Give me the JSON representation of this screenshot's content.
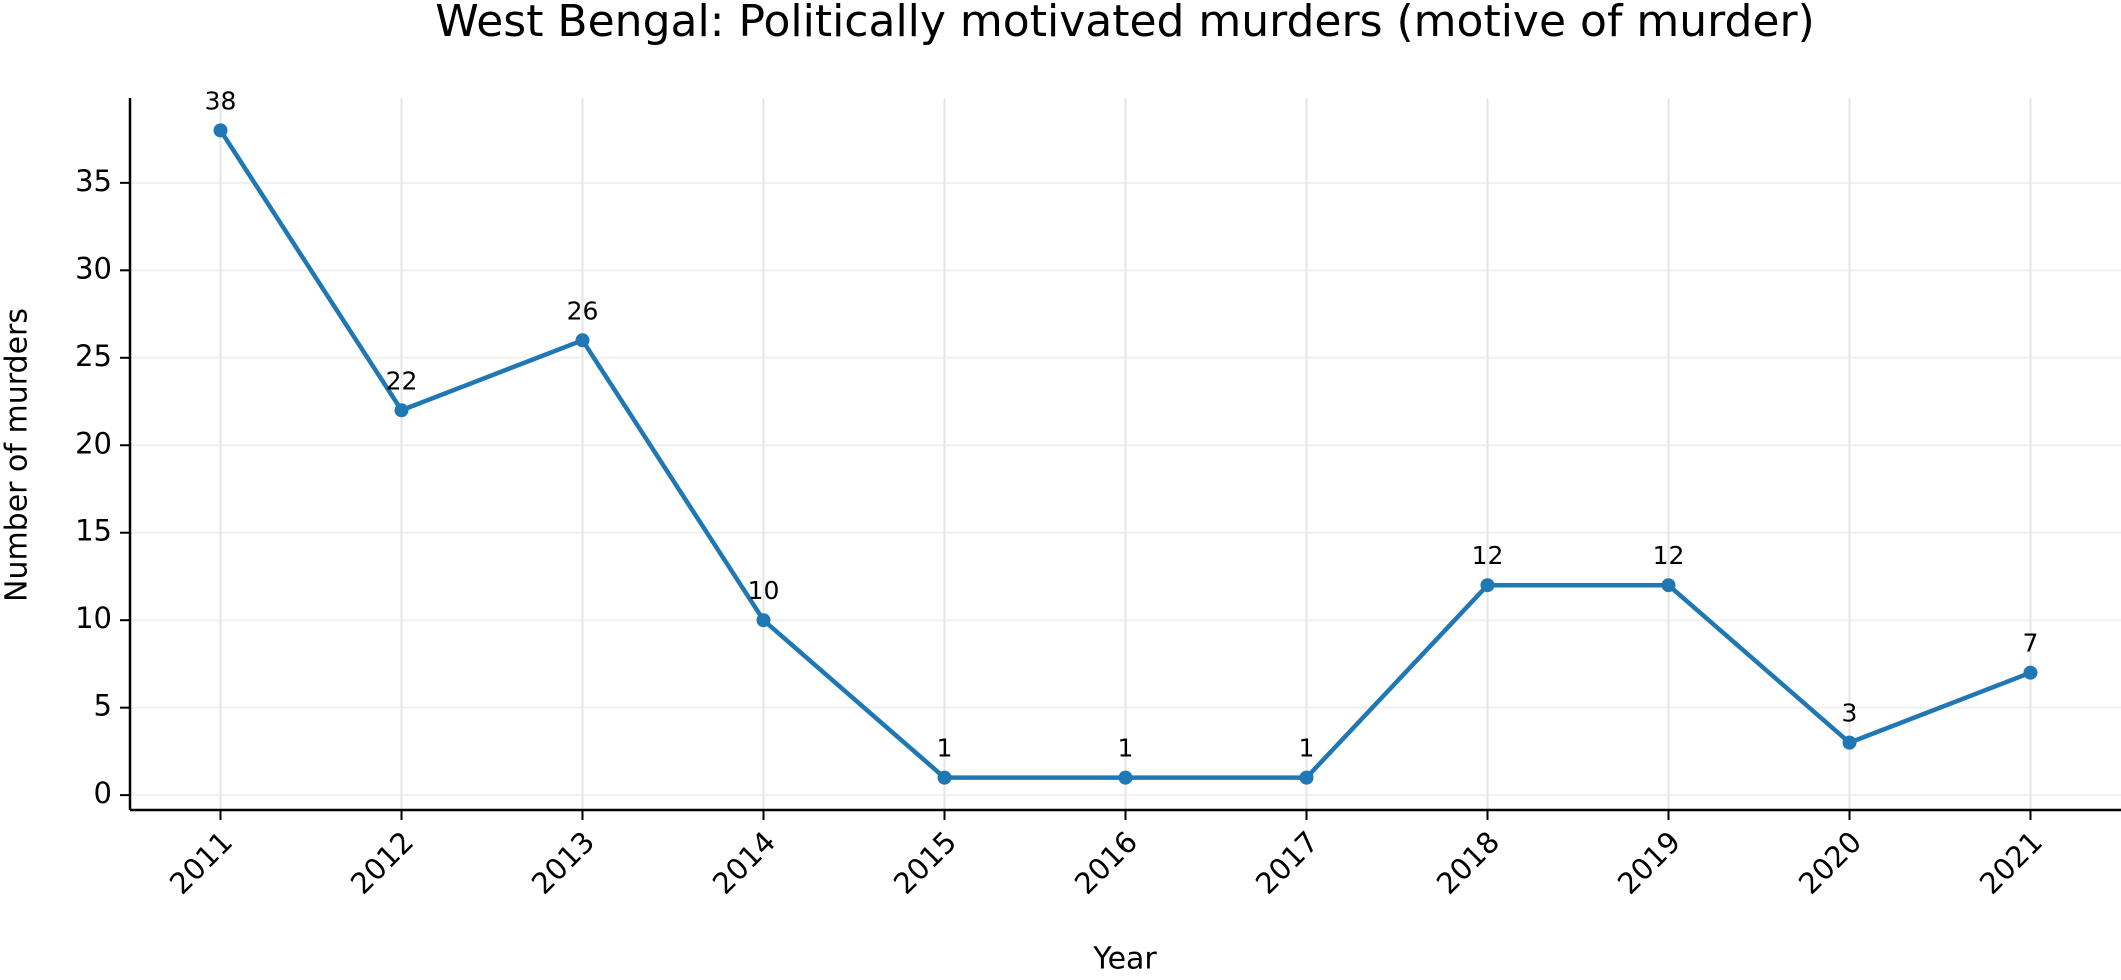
{
  "chart_data": {
    "type": "line",
    "title": "West Bengal: Politically motivated murders (motive of murder)",
    "xlabel": "Year",
    "ylabel": "Number of murders",
    "categories": [
      "2011",
      "2012",
      "2013",
      "2014",
      "2015",
      "2016",
      "2017",
      "2018",
      "2019",
      "2020",
      "2021"
    ],
    "values": [
      38,
      22,
      26,
      10,
      1,
      1,
      1,
      12,
      12,
      3,
      7
    ],
    "color": "#1f77b4",
    "ylim": [
      -0.85,
      39.85
    ],
    "yticks": [
      0,
      5,
      10,
      15,
      20,
      25,
      30,
      35
    ],
    "grid": true
  }
}
